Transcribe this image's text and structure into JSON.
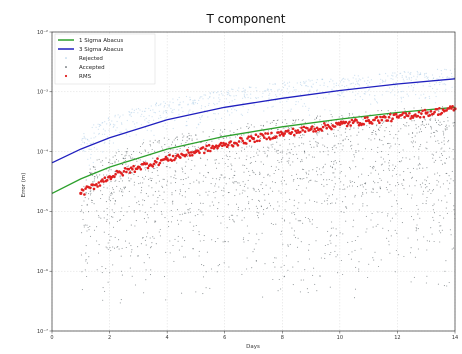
{
  "chart_data": {
    "type": "scatter",
    "title": "T component",
    "xlabel": "Days",
    "ylabel": "Error (m)",
    "x_range": [
      0,
      14
    ],
    "y_scale": "log",
    "y_range": [
      1e-07,
      0.01
    ],
    "x_ticks": [
      "0",
      "2",
      "4",
      "6",
      "8",
      "10",
      "12",
      "14"
    ],
    "y_ticks": [
      {
        "value": 1e-07,
        "label": "10⁻⁷"
      },
      {
        "value": 1e-06,
        "label": "10⁻⁶"
      },
      {
        "value": 1e-05,
        "label": "10⁻⁵"
      },
      {
        "value": 0.0001,
        "label": "10⁻⁴"
      },
      {
        "value": 0.001,
        "label": "10⁻³"
      },
      {
        "value": 0.01,
        "label": "10⁻²"
      }
    ],
    "grid": true,
    "legend_position": "top-left",
    "legend": [
      "1 Sigma Abacus",
      "3 Sigma Abacus",
      "Rejected",
      "Accepted",
      "RMS"
    ],
    "series": [
      {
        "name": "1 Sigma Abacus",
        "kind": "line",
        "color": "#2ca02c",
        "x": [
          0,
          1,
          2,
          4,
          6,
          8,
          10,
          12,
          14
        ],
        "y": [
          2e-05,
          3.5e-05,
          5.5e-05,
          0.00011,
          0.00018,
          0.00026,
          0.00035,
          0.00045,
          0.00055
        ]
      },
      {
        "name": "3 Sigma Abacus",
        "kind": "line",
        "color": "#1f1fbf",
        "x": [
          0,
          1,
          2,
          4,
          6,
          8,
          10,
          12,
          14
        ],
        "y": [
          6.5e-05,
          0.00011,
          0.00017,
          0.00034,
          0.00055,
          0.00078,
          0.00105,
          0.00135,
          0.00165
        ]
      },
      {
        "name": "Rejected",
        "kind": "scatter",
        "color": "#a9cbe6",
        "x_range": [
          1,
          14
        ],
        "y_range_at_start": [
          4e-05,
          0.0002
        ],
        "y_range_at_end": [
          0.0006,
          0.0025
        ]
      },
      {
        "name": "Accepted",
        "kind": "scatter",
        "color": "#2f3a40",
        "x_range": [
          1,
          14
        ],
        "y_range_at_start": [
          2e-07,
          5e-05
        ],
        "y_range_at_end": [
          3e-07,
          0.0006
        ]
      },
      {
        "name": "RMS",
        "kind": "scatter",
        "color": "#e02020",
        "x": [
          1,
          2,
          3,
          4,
          5,
          6,
          7,
          8,
          9,
          10,
          11,
          12,
          13,
          14
        ],
        "y": [
          2e-05,
          3.8e-05,
          5.5e-05,
          7.5e-05,
          0.0001,
          0.00013,
          0.000165,
          0.0002,
          0.00024,
          0.000285,
          0.00033,
          0.00038,
          0.00044,
          0.00052
        ]
      }
    ]
  }
}
